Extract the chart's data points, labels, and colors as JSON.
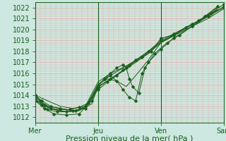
{
  "title": "",
  "xlabel": "Pression niveau de la mer( hPa )",
  "bg_color": "#cce8e0",
  "grid_color": "#e8aaaa",
  "line_color": "#1a5e1a",
  "xlim": [
    0,
    3
  ],
  "ylim": [
    1011.5,
    1022.5
  ],
  "yticks": [
    1012,
    1013,
    1014,
    1015,
    1016,
    1017,
    1018,
    1019,
    1020,
    1021,
    1022
  ],
  "xtick_labels": [
    "Mer",
    "Jeu",
    "Ven",
    "Sam"
  ],
  "xtick_positions": [
    0,
    1,
    2,
    3
  ],
  "lines": [
    {
      "x": [
        0.0,
        0.08,
        0.15,
        0.25,
        0.4,
        0.55,
        0.7,
        0.85,
        1.0,
        1.15,
        1.3,
        1.5,
        1.7,
        1.85,
        2.0,
        2.2,
        2.4,
        2.6,
        2.8,
        3.0
      ],
      "y": [
        1014.0,
        1013.5,
        1013.1,
        1012.8,
        1012.7,
        1012.7,
        1012.9,
        1013.3,
        1014.5,
        1015.2,
        1015.8,
        1016.7,
        1017.5,
        1018.0,
        1019.2,
        1019.5,
        1020.2,
        1020.8,
        1021.5,
        1022.3
      ],
      "marker": "D",
      "ms": 2.5
    },
    {
      "x": [
        0.0,
        0.1,
        0.2,
        0.35,
        0.5,
        0.65,
        0.8,
        1.0,
        1.2,
        1.4,
        1.6,
        1.8,
        2.0,
        2.2,
        2.5,
        2.75,
        3.0
      ],
      "y": [
        1013.8,
        1013.1,
        1012.7,
        1012.5,
        1012.5,
        1012.6,
        1013.0,
        1014.7,
        1015.5,
        1016.3,
        1017.2,
        1018.0,
        1019.0,
        1019.6,
        1020.5,
        1021.2,
        1022.1
      ],
      "marker": "D",
      "ms": 2.5
    },
    {
      "x": [
        0.0,
        0.15,
        0.3,
        0.5,
        0.7,
        0.9,
        1.0,
        1.2,
        1.4,
        1.6,
        1.8,
        2.0,
        2.2,
        2.5,
        2.75,
        3.0
      ],
      "y": [
        1013.6,
        1013.0,
        1012.7,
        1012.5,
        1012.6,
        1013.2,
        1014.8,
        1015.5,
        1016.2,
        1017.0,
        1017.8,
        1018.8,
        1019.4,
        1020.3,
        1021.0,
        1021.9
      ],
      "marker": null,
      "ms": 0
    },
    {
      "x": [
        0.0,
        0.2,
        0.4,
        0.6,
        0.8,
        1.0,
        1.2,
        1.4,
        1.6,
        1.8,
        2.0,
        2.3,
        2.6,
        2.9
      ],
      "y": [
        1013.5,
        1013.0,
        1012.8,
        1012.6,
        1012.8,
        1015.0,
        1015.8,
        1016.5,
        1017.2,
        1018.0,
        1018.9,
        1019.8,
        1020.8,
        1022.0
      ],
      "marker": null,
      "ms": 0
    },
    {
      "x": [
        0.0,
        0.1,
        0.25,
        0.4,
        0.6,
        0.8,
        1.0,
        1.1,
        1.2,
        1.3,
        1.4,
        1.45,
        1.5,
        1.55,
        1.65,
        1.75,
        1.9,
        2.1,
        2.3,
        2.5,
        2.7,
        2.9
      ],
      "y": [
        1014.0,
        1013.5,
        1013.0,
        1012.8,
        1012.6,
        1012.8,
        1014.8,
        1015.5,
        1016.0,
        1016.5,
        1016.8,
        1016.5,
        1015.5,
        1014.8,
        1014.2,
        1016.5,
        1017.8,
        1018.8,
        1019.5,
        1020.3,
        1021.2,
        1022.1
      ],
      "marker": "D",
      "ms": 2.5
    },
    {
      "x": [
        0.0,
        0.15,
        0.3,
        0.5,
        0.7,
        0.9,
        1.0,
        1.1,
        1.2,
        1.3,
        1.4,
        1.5,
        1.6,
        1.7,
        1.8,
        2.0,
        2.2,
        2.5,
        2.75,
        3.0
      ],
      "y": [
        1013.5,
        1012.8,
        1012.3,
        1012.2,
        1012.3,
        1013.5,
        1014.8,
        1015.5,
        1015.8,
        1015.3,
        1014.5,
        1013.8,
        1013.5,
        1016.0,
        1017.0,
        1018.2,
        1019.2,
        1020.3,
        1021.2,
        1022.0
      ],
      "marker": "D",
      "ms": 2.5
    },
    {
      "x": [
        0.0,
        0.15,
        0.3,
        0.5,
        0.7,
        0.9,
        1.0,
        1.15,
        1.3,
        1.45,
        1.6,
        1.8,
        2.0,
        2.3,
        2.6,
        2.9
      ],
      "y": [
        1013.8,
        1013.2,
        1012.7,
        1012.5,
        1012.6,
        1013.5,
        1015.0,
        1015.5,
        1015.3,
        1014.8,
        1015.8,
        1017.2,
        1018.8,
        1019.8,
        1020.8,
        1021.8
      ],
      "marker": null,
      "ms": 0
    },
    {
      "x": [
        0.0,
        0.2,
        0.4,
        0.6,
        0.8,
        1.0,
        1.2,
        1.5,
        1.7,
        2.0,
        2.3,
        2.6,
        2.9
      ],
      "y": [
        1014.0,
        1013.5,
        1013.0,
        1012.8,
        1013.0,
        1015.2,
        1016.0,
        1016.8,
        1017.5,
        1018.8,
        1019.8,
        1020.8,
        1021.8
      ],
      "marker": null,
      "ms": 0
    }
  ]
}
